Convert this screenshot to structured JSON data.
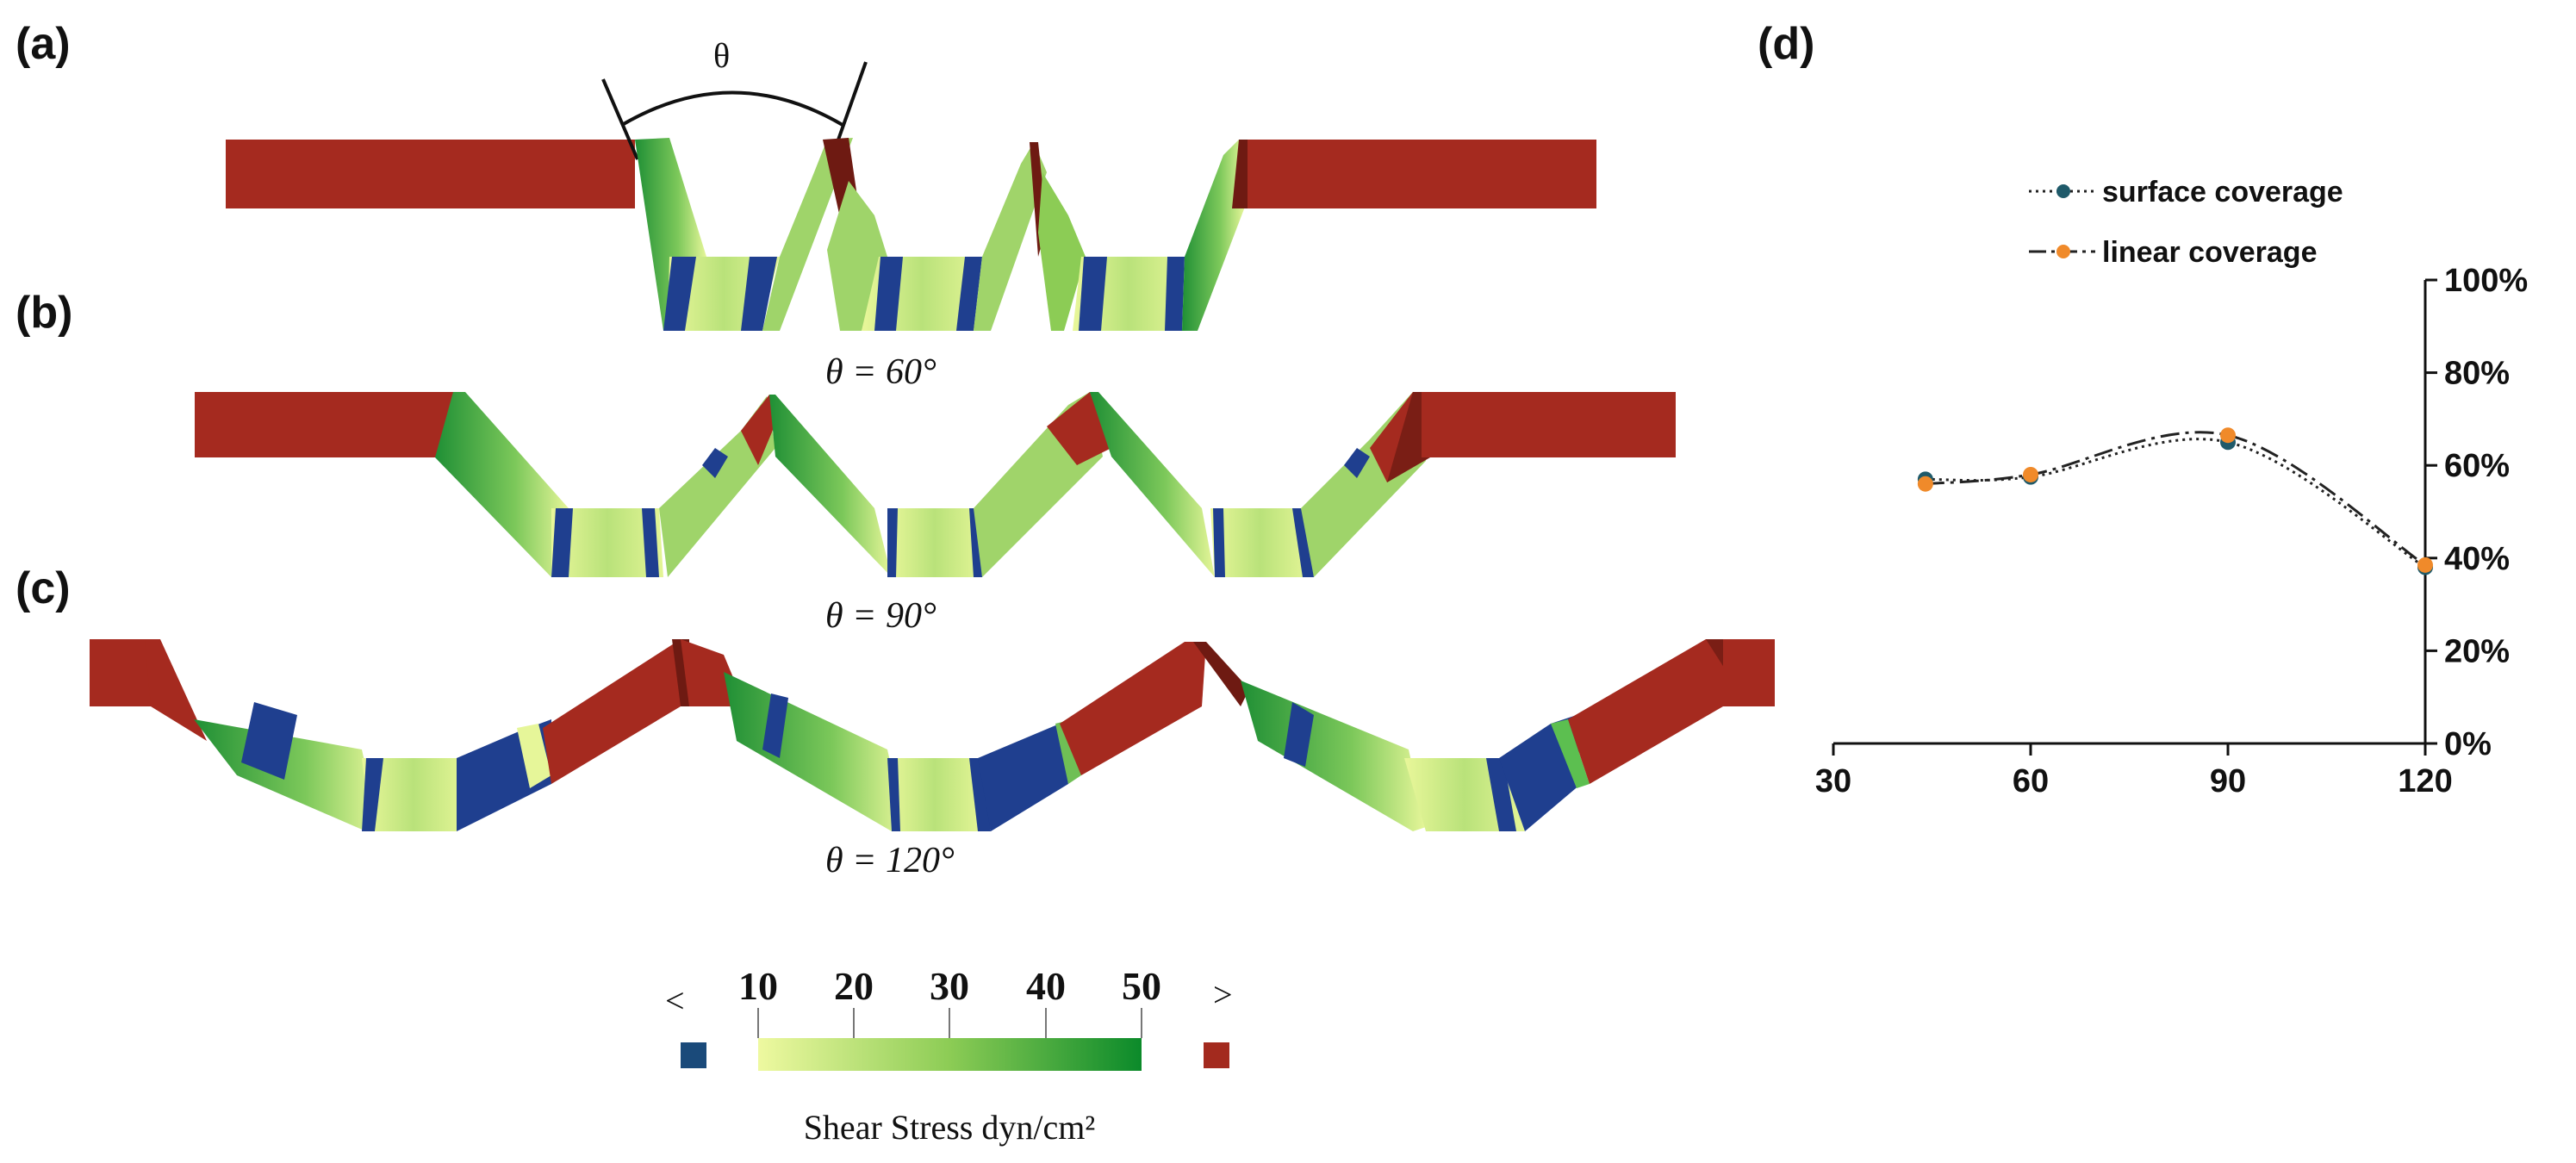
{
  "panels": {
    "a": {
      "label": "(a)",
      "theta_symbol": "θ",
      "angle_label": "θ = 60°"
    },
    "b": {
      "label": "(b)",
      "angle_label": "θ = 90°"
    },
    "c": {
      "label": "(c)",
      "angle_label": "θ = 120°"
    },
    "d": {
      "label": "(d)"
    }
  },
  "colorbar": {
    "title": "Shear Stress dyn/cm²",
    "ticks": [
      "10",
      "20",
      "30",
      "40",
      "50"
    ],
    "low_marker": "<",
    "high_marker": ">",
    "colors": {
      "low": "#1a4a7a",
      "gradient_start": "#e9f79a",
      "gradient_end": "#0a8a2a",
      "high": "#a32a1e"
    }
  },
  "colors": {
    "wall_red": "#a52a1f",
    "wall_dark": "#6e1a12",
    "band_blue": "#1f3f8f",
    "pale": "#e8f79c",
    "green": "#2f9a3a",
    "surface_dot": "#1f5a6a",
    "linear_dot": "#f08a2a"
  },
  "chart_data": {
    "type": "line",
    "title": "",
    "xlabel": "",
    "ylabel": "",
    "x_ticks": [
      "30",
      "60",
      "90",
      "120"
    ],
    "y_ticks": [
      "0%",
      "20%",
      "40%",
      "60%",
      "80%",
      "100%"
    ],
    "xlim": [
      30,
      120
    ],
    "ylim": [
      0,
      100
    ],
    "legend_position": "top-left",
    "series": [
      {
        "name": "surface coverage",
        "style": "dotted",
        "marker_color": "#1f5a6a",
        "x": [
          44,
          60,
          90,
          120
        ],
        "y": [
          57,
          57.5,
          65,
          38
        ]
      },
      {
        "name": "linear coverage",
        "style": "dash-dot",
        "marker_color": "#f08a2a",
        "x": [
          44,
          60,
          90,
          120
        ],
        "y": [
          56,
          58,
          66.5,
          38.5
        ]
      }
    ]
  }
}
